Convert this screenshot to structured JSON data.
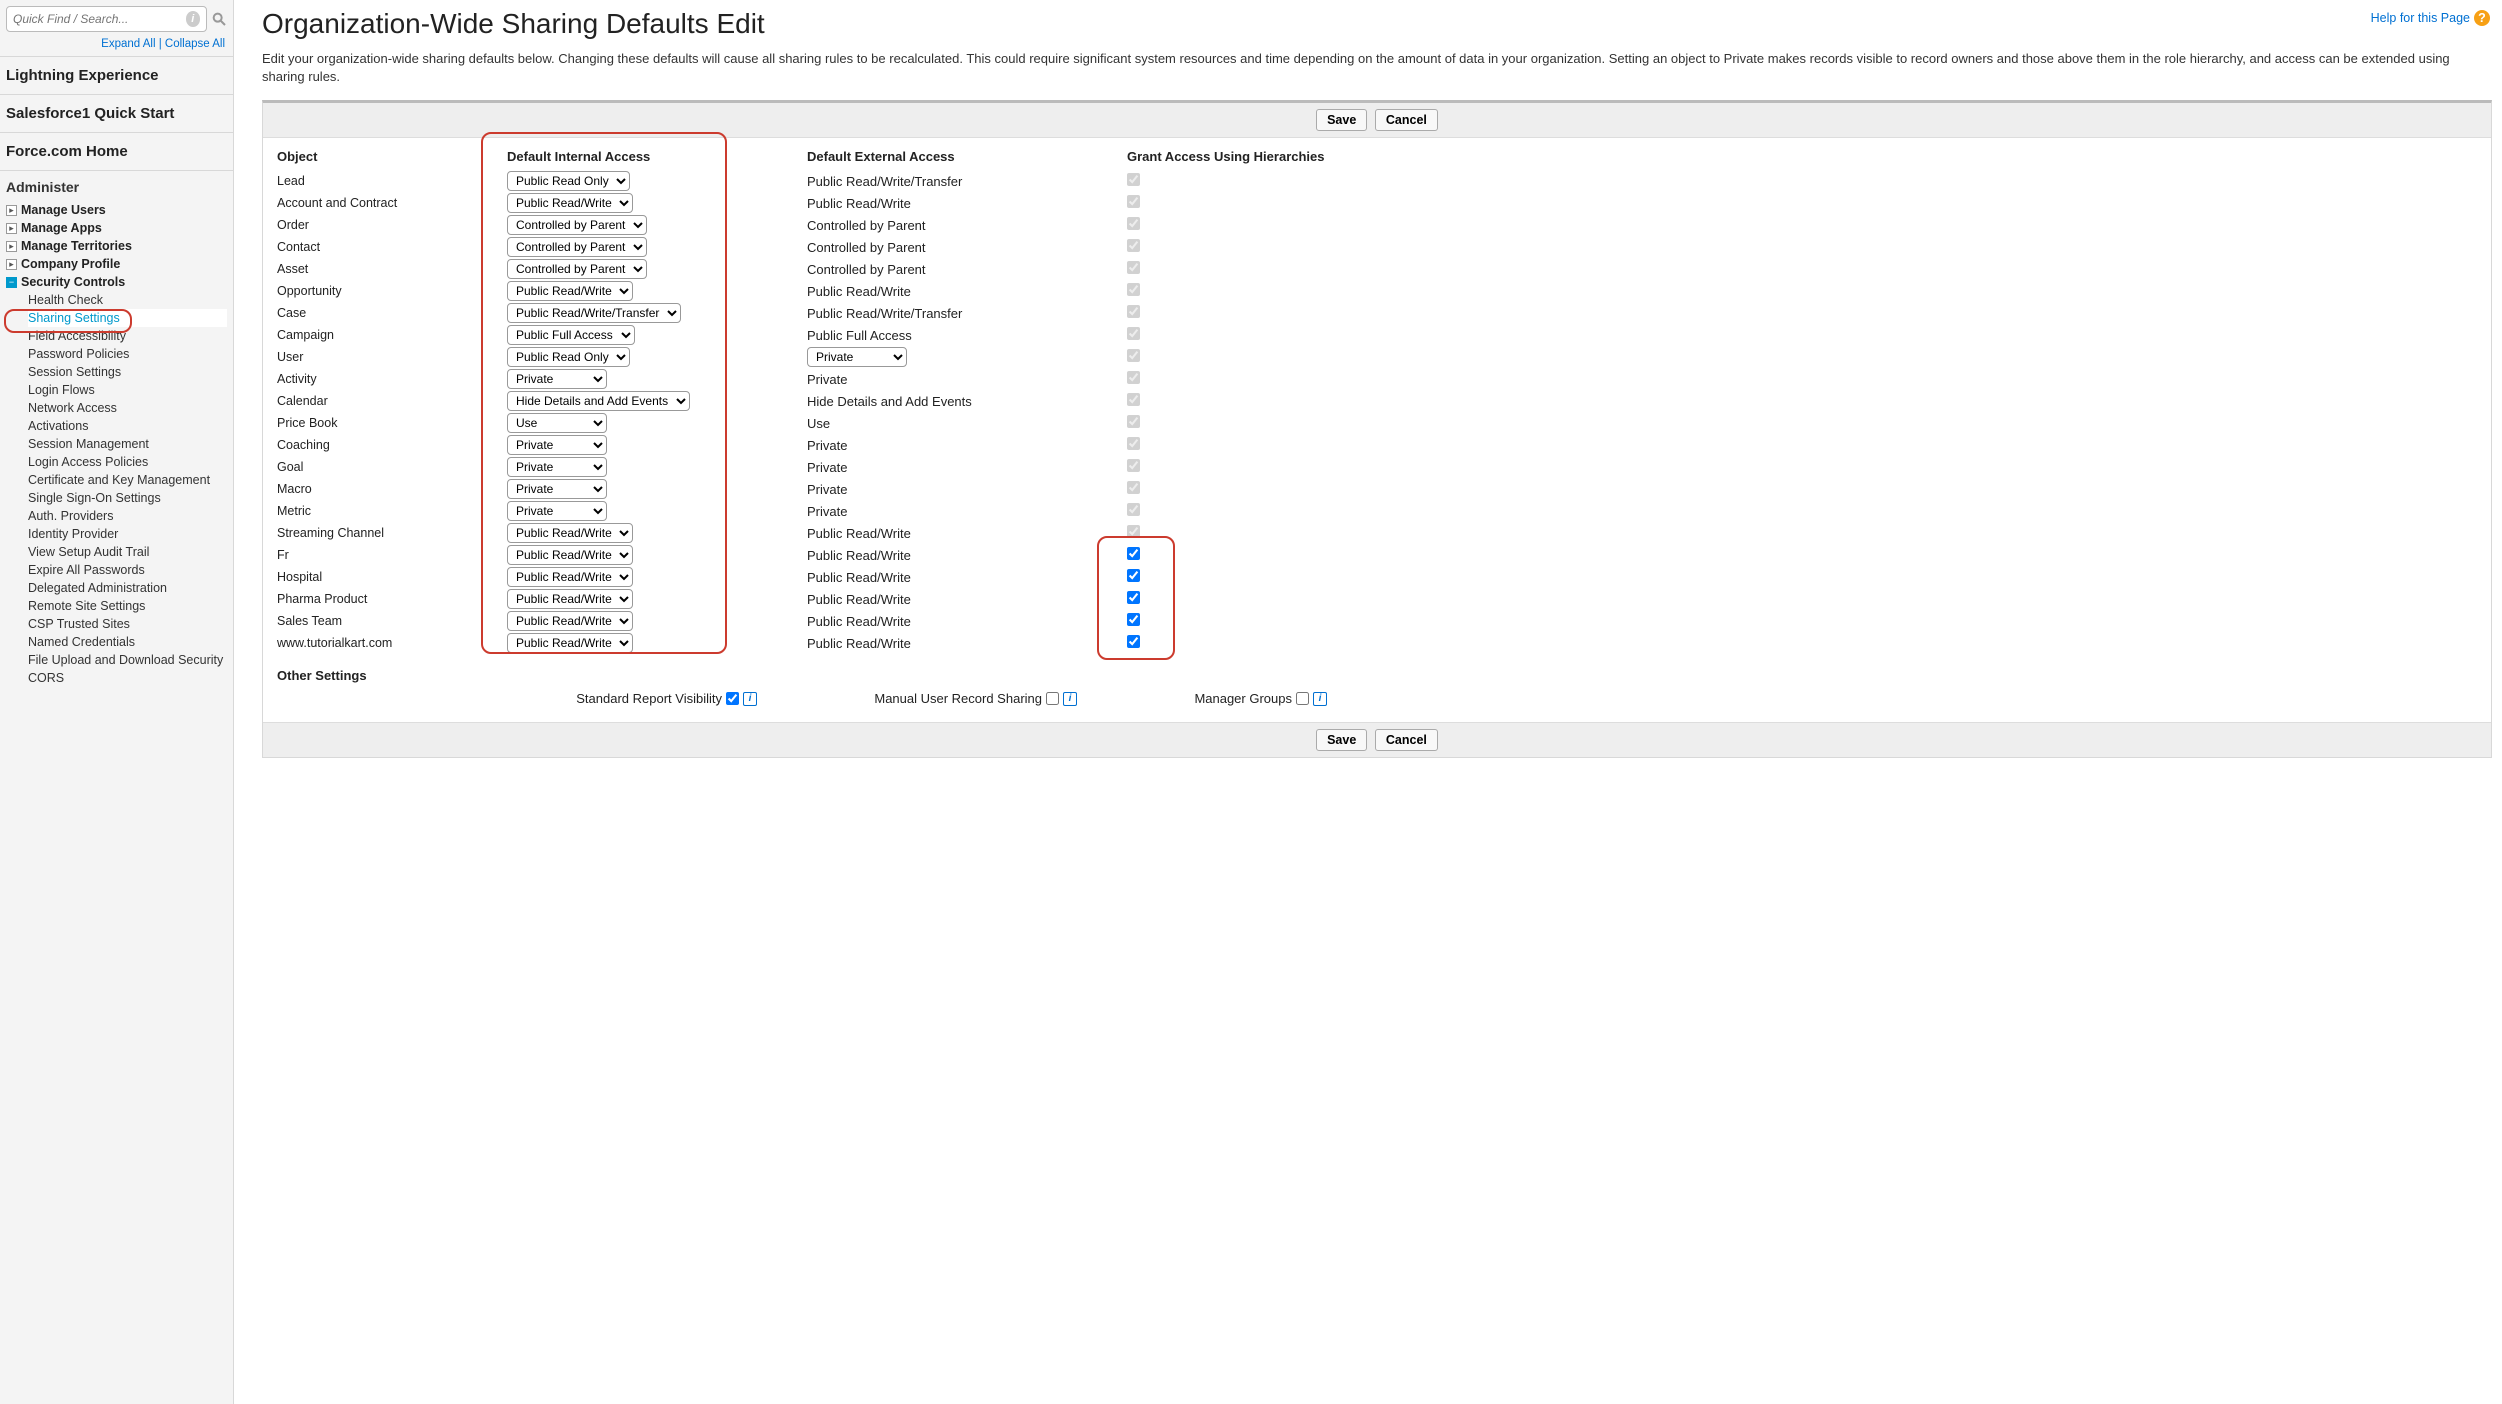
{
  "search": {
    "placeholder": "Quick Find / Search..."
  },
  "expand": "Expand All",
  "collapse": "Collapse All",
  "side_sections": {
    "lightning": "Lightning Experience",
    "sf1": "Salesforce1 Quick Start",
    "force": "Force.com Home"
  },
  "administer_label": "Administer",
  "admin_top": [
    "Manage Users",
    "Manage Apps",
    "Manage Territories",
    "Company Profile"
  ],
  "security_controls": "Security Controls",
  "sec_items": [
    "Health Check",
    "Sharing Settings",
    "Field Accessibility",
    "Password Policies",
    "Session Settings",
    "Login Flows",
    "Network Access",
    "Activations",
    "Session Management",
    "Login Access Policies",
    "Certificate and Key Management",
    "Single Sign-On Settings",
    "Auth. Providers",
    "Identity Provider",
    "View Setup Audit Trail",
    "Expire All Passwords",
    "Delegated Administration",
    "Remote Site Settings",
    "CSP Trusted Sites",
    "Named Credentials",
    "File Upload and Download Security",
    "CORS"
  ],
  "help": "Help for this Page",
  "title": "Organization-Wide Sharing Defaults Edit",
  "description": "Edit your organization-wide sharing defaults below. Changing these defaults will cause all sharing rules to be recalculated. This could require significant system resources and time depending on the amount of data in your organization. Setting an object to Private makes records visible to record owners and those above them in the role hierarchy, and access can be extended using sharing rules.",
  "buttons": {
    "save": "Save",
    "cancel": "Cancel"
  },
  "headers": {
    "object": "Object",
    "internal": "Default Internal Access",
    "external": "Default External Access",
    "hierarchies": "Grant Access Using Hierarchies"
  },
  "rows": [
    {
      "obj": "Lead",
      "internal": "Public Read Only",
      "ext": "Public Read/Write/Transfer",
      "ext_sel": false,
      "chk_disabled": true
    },
    {
      "obj": "Account and Contract",
      "internal": "Public Read/Write",
      "ext": "Public Read/Write",
      "ext_sel": false,
      "chk_disabled": true
    },
    {
      "obj": "Order",
      "internal": "Controlled by Parent",
      "ext": "Controlled by Parent",
      "ext_sel": false,
      "chk_disabled": true
    },
    {
      "obj": "Contact",
      "internal": "Controlled by Parent",
      "ext": "Controlled by Parent",
      "ext_sel": false,
      "chk_disabled": true
    },
    {
      "obj": "Asset",
      "internal": "Controlled by Parent",
      "ext": "Controlled by Parent",
      "ext_sel": false,
      "chk_disabled": true
    },
    {
      "obj": "Opportunity",
      "internal": "Public Read/Write",
      "ext": "Public Read/Write",
      "ext_sel": false,
      "chk_disabled": true
    },
    {
      "obj": "Case",
      "internal": "Public Read/Write/Transfer",
      "ext": "Public Read/Write/Transfer",
      "ext_sel": false,
      "chk_disabled": true
    },
    {
      "obj": "Campaign",
      "internal": "Public Full Access",
      "ext": "Public Full Access",
      "ext_sel": false,
      "chk_disabled": true
    },
    {
      "obj": "User",
      "internal": "Public Read Only",
      "ext": "Private",
      "ext_sel": true,
      "chk_disabled": true
    },
    {
      "obj": "Activity",
      "internal": "Private",
      "ext": "Private",
      "ext_sel": false,
      "chk_disabled": true
    },
    {
      "obj": "Calendar",
      "internal": "Hide Details and Add Events",
      "ext": "Hide Details and Add Events",
      "ext_sel": false,
      "chk_disabled": true
    },
    {
      "obj": "Price Book",
      "internal": "Use",
      "ext": "Use",
      "ext_sel": false,
      "chk_disabled": true
    },
    {
      "obj": "Coaching",
      "internal": "Private",
      "ext": "Private",
      "ext_sel": false,
      "chk_disabled": true
    },
    {
      "obj": "Goal",
      "internal": "Private",
      "ext": "Private",
      "ext_sel": false,
      "chk_disabled": true
    },
    {
      "obj": "Macro",
      "internal": "Private",
      "ext": "Private",
      "ext_sel": false,
      "chk_disabled": true
    },
    {
      "obj": "Metric",
      "internal": "Private",
      "ext": "Private",
      "ext_sel": false,
      "chk_disabled": true
    },
    {
      "obj": "Streaming Channel",
      "internal": "Public Read/Write",
      "ext": "Public Read/Write",
      "ext_sel": false,
      "chk_disabled": true
    },
    {
      "obj": "Fr",
      "internal": "Public Read/Write",
      "ext": "Public Read/Write",
      "ext_sel": false,
      "chk_disabled": false
    },
    {
      "obj": "Hospital",
      "internal": "Public Read/Write",
      "ext": "Public Read/Write",
      "ext_sel": false,
      "chk_disabled": false
    },
    {
      "obj": "Pharma Product",
      "internal": "Public Read/Write",
      "ext": "Public Read/Write",
      "ext_sel": false,
      "chk_disabled": false
    },
    {
      "obj": "Sales Team",
      "internal": "Public Read/Write",
      "ext": "Public Read/Write",
      "ext_sel": false,
      "chk_disabled": false
    },
    {
      "obj": "www.tutorialkart.com",
      "internal": "Public Read/Write",
      "ext": "Public Read/Write",
      "ext_sel": false,
      "chk_disabled": false
    }
  ],
  "other_header": "Other Settings",
  "other": {
    "std_report": "Standard Report Visibility",
    "std_report_checked": true,
    "manual_user": "Manual User Record Sharing",
    "manual_user_checked": false,
    "manager_groups": "Manager Groups",
    "manager_groups_checked": false
  },
  "highlight_boxes": {
    "sidebar_sharing": {
      "color": "#cc3b2e"
    },
    "internal_col": {
      "color": "#cc3b2e"
    },
    "hierarchy_bottom": {
      "color": "#cc3b2e"
    }
  }
}
